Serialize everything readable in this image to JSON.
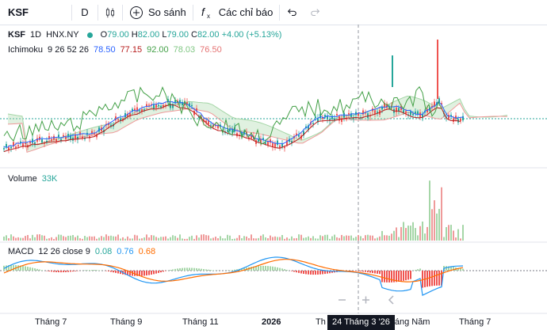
{
  "toolbar": {
    "symbol": "KSF",
    "interval": "D",
    "compare_label": "So sánh",
    "indicators_label": "Các chỉ báo"
  },
  "header": {
    "symbol": "KSF",
    "interval": "1D",
    "exchange": "HNX.NY",
    "open_label": "O",
    "open": "79.00",
    "high_label": "H",
    "high": "82.00",
    "low_label": "L",
    "low": "79.00",
    "close_label": "C",
    "close": "82.00",
    "change": "+4.00 (+5.13%)"
  },
  "ichimoku": {
    "name": "Ichimoku",
    "params": "9 26 52 26",
    "v1": "78.50",
    "v2": "77.15",
    "v3": "92.00",
    "v4": "78.03",
    "v5": "76.50"
  },
  "volume": {
    "name": "Volume",
    "value": "33K"
  },
  "macd": {
    "name": "MACD",
    "params": "12 26 close 9",
    "v1": "0.08",
    "v2": "0.76",
    "v3": "0.68"
  },
  "xaxis": {
    "labels": [
      "Tháng 7",
      "Tháng 9",
      "Tháng 11",
      "2026",
      "Th",
      "Tháng Năm",
      "Tháng 7"
    ],
    "crosshair_label": "24 Tháng 3 '26"
  },
  "colors": {
    "up": "#26a69a",
    "down": "#ef5350",
    "tenkan": "#2962ff",
    "kijun": "#b71c1c",
    "chikou": "#43a047",
    "span_a": "#a5d6a7",
    "span_b": "#ef9a9a",
    "macd_line": "#2196f3",
    "signal_line": "#ff6d00"
  }
}
